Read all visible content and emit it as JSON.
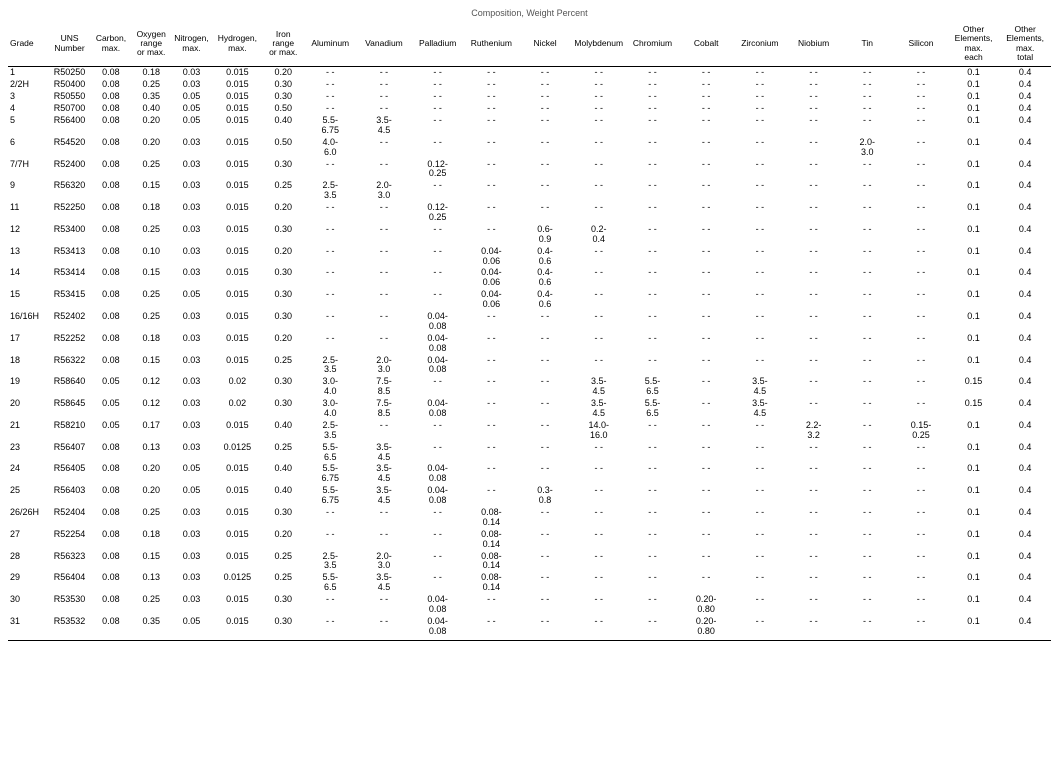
{
  "title": "Composition, Weight Percent",
  "columns": [
    {
      "key": "grade",
      "label": "Grade"
    },
    {
      "key": "uns",
      "label": "UNS\nNumber"
    },
    {
      "key": "carbon",
      "label": "Carbon,\nmax."
    },
    {
      "key": "oxygen",
      "label": "Oxygen\nrange\nor max."
    },
    {
      "key": "nitrogen",
      "label": "Nitrogen,\nmax."
    },
    {
      "key": "hydrogen",
      "label": "Hydrogen,\nmax."
    },
    {
      "key": "iron",
      "label": "Iron\nrange\nor max."
    },
    {
      "key": "al",
      "label": "Aluminum"
    },
    {
      "key": "v",
      "label": "Vanadium"
    },
    {
      "key": "pd",
      "label": "Palladium"
    },
    {
      "key": "ru",
      "label": "Ruthenium"
    },
    {
      "key": "ni",
      "label": "Nickel"
    },
    {
      "key": "mo",
      "label": "Molybdenum"
    },
    {
      "key": "cr",
      "label": "Chromium"
    },
    {
      "key": "co",
      "label": "Cobalt"
    },
    {
      "key": "zr",
      "label": "Zirconium"
    },
    {
      "key": "nb",
      "label": "Niobium"
    },
    {
      "key": "sn",
      "label": "Tin"
    },
    {
      "key": "si",
      "label": "Silicon"
    },
    {
      "key": "oe_each",
      "label": "Other\nElements,\nmax.\neach"
    },
    {
      "key": "oe_total",
      "label": "Other\nElements,\nmax.\ntotal"
    }
  ],
  "rows": [
    {
      "grade": "1",
      "uns": "R50250",
      "carbon": "0.08",
      "oxygen": "0.18",
      "nitrogen": "0.03",
      "hydrogen": "0.015",
      "iron": "0.20",
      "al": "- -",
      "v": "- -",
      "pd": "- -",
      "ru": "- -",
      "ni": "- -",
      "mo": "- -",
      "cr": "- -",
      "co": "- -",
      "zr": "- -",
      "nb": "- -",
      "sn": "- -",
      "si": "- -",
      "oe_each": "0.1",
      "oe_total": "0.4"
    },
    {
      "grade": "2/2H",
      "uns": "R50400",
      "carbon": "0.08",
      "oxygen": "0.25",
      "nitrogen": "0.03",
      "hydrogen": "0.015",
      "iron": "0.30",
      "al": "- -",
      "v": "- -",
      "pd": "- -",
      "ru": "- -",
      "ni": "- -",
      "mo": "- -",
      "cr": "- -",
      "co": "- -",
      "zr": "- -",
      "nb": "- -",
      "sn": "- -",
      "si": "- -",
      "oe_each": "0.1",
      "oe_total": "0.4"
    },
    {
      "grade": "3",
      "uns": "R50550",
      "carbon": "0.08",
      "oxygen": "0.35",
      "nitrogen": "0.05",
      "hydrogen": "0.015",
      "iron": "0.30",
      "al": "- -",
      "v": "- -",
      "pd": "- -",
      "ru": "- -",
      "ni": "- -",
      "mo": "- -",
      "cr": "- -",
      "co": "- -",
      "zr": "- -",
      "nb": "- -",
      "sn": "- -",
      "si": "- -",
      "oe_each": "0.1",
      "oe_total": "0.4"
    },
    {
      "grade": "4",
      "uns": "R50700",
      "carbon": "0.08",
      "oxygen": "0.40",
      "nitrogen": "0.05",
      "hydrogen": "0.015",
      "iron": "0.50",
      "al": "- -",
      "v": "- -",
      "pd": "- -",
      "ru": "- -",
      "ni": "- -",
      "mo": "- -",
      "cr": "- -",
      "co": "- -",
      "zr": "- -",
      "nb": "- -",
      "sn": "- -",
      "si": "- -",
      "oe_each": "0.1",
      "oe_total": "0.4"
    },
    {
      "grade": "5",
      "uns": "R56400",
      "carbon": "0.08",
      "oxygen": "0.20",
      "nitrogen": "0.05",
      "hydrogen": "0.015",
      "iron": "0.40",
      "al": "5.5-\n6.75",
      "v": "3.5-\n4.5",
      "pd": "- -",
      "ru": "- -",
      "ni": "- -",
      "mo": "- -",
      "cr": "- -",
      "co": "- -",
      "zr": "- -",
      "nb": "- -",
      "sn": "- -",
      "si": "- -",
      "oe_each": "0.1",
      "oe_total": "0.4"
    },
    {
      "grade": "6",
      "uns": "R54520",
      "carbon": "0.08",
      "oxygen": "0.20",
      "nitrogen": "0.03",
      "hydrogen": "0.015",
      "iron": "0.50",
      "al": "4.0-\n6.0",
      "v": "- -",
      "pd": "- -",
      "ru": "- -",
      "ni": "- -",
      "mo": "- -",
      "cr": "- -",
      "co": "- -",
      "zr": "- -",
      "nb": "- -",
      "sn": "2.0-\n3.0",
      "si": "- -",
      "oe_each": "0.1",
      "oe_total": "0.4"
    },
    {
      "grade": "7/7H",
      "uns": "R52400",
      "carbon": "0.08",
      "oxygen": "0.25",
      "nitrogen": "0.03",
      "hydrogen": "0.015",
      "iron": "0.30",
      "al": "- -",
      "v": "- -",
      "pd": "0.12-\n0.25",
      "ru": "- -",
      "ni": "- -",
      "mo": "- -",
      "cr": "- -",
      "co": "- -",
      "zr": "- -",
      "nb": "- -",
      "sn": "- -",
      "si": "- -",
      "oe_each": "0.1",
      "oe_total": "0.4"
    },
    {
      "grade": "9",
      "uns": "R56320",
      "carbon": "0.08",
      "oxygen": "0.15",
      "nitrogen": "0.03",
      "hydrogen": "0.015",
      "iron": "0.25",
      "al": "2.5-\n3.5",
      "v": "2.0-\n3.0",
      "pd": "- -",
      "ru": "- -",
      "ni": "- -",
      "mo": "- -",
      "cr": "- -",
      "co": "- -",
      "zr": "- -",
      "nb": "- -",
      "sn": "- -",
      "si": "- -",
      "oe_each": "0.1",
      "oe_total": "0.4"
    },
    {
      "grade": "11",
      "uns": "R52250",
      "carbon": "0.08",
      "oxygen": "0.18",
      "nitrogen": "0.03",
      "hydrogen": "0.015",
      "iron": "0.20",
      "al": "- -",
      "v": "- -",
      "pd": "0.12-\n0.25",
      "ru": "- -",
      "ni": "- -",
      "mo": "- -",
      "cr": "- -",
      "co": "- -",
      "zr": "- -",
      "nb": "- -",
      "sn": "- -",
      "si": "- -",
      "oe_each": "0.1",
      "oe_total": "0.4"
    },
    {
      "grade": "12",
      "uns": "R53400",
      "carbon": "0.08",
      "oxygen": "0.25",
      "nitrogen": "0.03",
      "hydrogen": "0.015",
      "iron": "0.30",
      "al": "- -",
      "v": "- -",
      "pd": "- -",
      "ru": "- -",
      "ni": "0.6-\n0.9",
      "mo": "0.2-\n0.4",
      "cr": "- -",
      "co": "- -",
      "zr": "- -",
      "nb": "- -",
      "sn": "- -",
      "si": "- -",
      "oe_each": "0.1",
      "oe_total": "0.4"
    },
    {
      "grade": "13",
      "uns": "R53413",
      "carbon": "0.08",
      "oxygen": "0.10",
      "nitrogen": "0.03",
      "hydrogen": "0.015",
      "iron": "0.20",
      "al": "- -",
      "v": "- -",
      "pd": "- -",
      "ru": "0.04-\n0.06",
      "ni": "0.4-\n0.6",
      "mo": "- -",
      "cr": "- -",
      "co": "- -",
      "zr": "- -",
      "nb": "- -",
      "sn": "- -",
      "si": "- -",
      "oe_each": "0.1",
      "oe_total": "0.4"
    },
    {
      "grade": "14",
      "uns": "R53414",
      "carbon": "0.08",
      "oxygen": "0.15",
      "nitrogen": "0.03",
      "hydrogen": "0.015",
      "iron": "0.30",
      "al": "- -",
      "v": "- -",
      "pd": "- -",
      "ru": "0.04-\n0.06",
      "ni": "0.4-\n0.6",
      "mo": "- -",
      "cr": "- -",
      "co": "- -",
      "zr": "- -",
      "nb": "- -",
      "sn": "- -",
      "si": "- -",
      "oe_each": "0.1",
      "oe_total": "0.4"
    },
    {
      "grade": "15",
      "uns": "R53415",
      "carbon": "0.08",
      "oxygen": "0.25",
      "nitrogen": "0.05",
      "hydrogen": "0.015",
      "iron": "0.30",
      "al": "- -",
      "v": "- -",
      "pd": "- -",
      "ru": "0.04-\n0.06",
      "ni": "0.4-\n0.6",
      "mo": "- -",
      "cr": "- -",
      "co": "- -",
      "zr": "- -",
      "nb": "- -",
      "sn": "- -",
      "si": "- -",
      "oe_each": "0.1",
      "oe_total": "0.4"
    },
    {
      "grade": "16/16H",
      "uns": "R52402",
      "carbon": "0.08",
      "oxygen": "0.25",
      "nitrogen": "0.03",
      "hydrogen": "0.015",
      "iron": "0.30",
      "al": "- -",
      "v": "- -",
      "pd": "0.04-\n0.08",
      "ru": "- -",
      "ni": "- -",
      "mo": "- -",
      "cr": "- -",
      "co": "- -",
      "zr": "- -",
      "nb": "- -",
      "sn": "- -",
      "si": "- -",
      "oe_each": "0.1",
      "oe_total": "0.4"
    },
    {
      "grade": "17",
      "uns": "R52252",
      "carbon": "0.08",
      "oxygen": "0.18",
      "nitrogen": "0.03",
      "hydrogen": "0.015",
      "iron": "0.20",
      "al": "- -",
      "v": "- -",
      "pd": "0.04-\n0.08",
      "ru": "- -",
      "ni": "- -",
      "mo": "- -",
      "cr": "- -",
      "co": "- -",
      "zr": "- -",
      "nb": "- -",
      "sn": "- -",
      "si": "- -",
      "oe_each": "0.1",
      "oe_total": "0.4"
    },
    {
      "grade": "18",
      "uns": "R56322",
      "carbon": "0.08",
      "oxygen": "0.15",
      "nitrogen": "0.03",
      "hydrogen": "0.015",
      "iron": "0.25",
      "al": "2.5-\n3.5",
      "v": "2.0-\n3.0",
      "pd": "0.04-\n0.08",
      "ru": "- -",
      "ni": "- -",
      "mo": "- -",
      "cr": "- -",
      "co": "- -",
      "zr": "- -",
      "nb": "- -",
      "sn": "- -",
      "si": "- -",
      "oe_each": "0.1",
      "oe_total": "0.4"
    },
    {
      "grade": "19",
      "uns": "R58640",
      "carbon": "0.05",
      "oxygen": "0.12",
      "nitrogen": "0.03",
      "hydrogen": "0.02",
      "iron": "0.30",
      "al": "3.0-\n4.0",
      "v": "7.5-\n8.5",
      "pd": "- -",
      "ru": "- -",
      "ni": "- -",
      "mo": "3.5-\n4.5",
      "cr": "5.5-\n6.5",
      "co": "- -",
      "zr": "3.5-\n4.5",
      "nb": "- -",
      "sn": "- -",
      "si": "- -",
      "oe_each": "0.15",
      "oe_total": "0.4"
    },
    {
      "grade": "20",
      "uns": "R58645",
      "carbon": "0.05",
      "oxygen": "0.12",
      "nitrogen": "0.03",
      "hydrogen": "0.02",
      "iron": "0.30",
      "al": "3.0-\n4.0",
      "v": "7.5-\n8.5",
      "pd": "0.04-\n0.08",
      "ru": "- -",
      "ni": "- -",
      "mo": "3.5-\n4.5",
      "cr": "5.5-\n6.5",
      "co": "- -",
      "zr": "3.5-\n4.5",
      "nb": "- -",
      "sn": "- -",
      "si": "- -",
      "oe_each": "0.15",
      "oe_total": "0.4"
    },
    {
      "grade": "21",
      "uns": "R58210",
      "carbon": "0.05",
      "oxygen": "0.17",
      "nitrogen": "0.03",
      "hydrogen": "0.015",
      "iron": "0.40",
      "al": "2.5-\n3.5",
      "v": "- -",
      "pd": "- -",
      "ru": "- -",
      "ni": "- -",
      "mo": "14.0-\n16.0",
      "cr": "- -",
      "co": "- -",
      "zr": "- -",
      "nb": "2.2-\n3.2",
      "sn": "- -",
      "si": "0.15-\n0.25",
      "oe_each": "0.1",
      "oe_total": "0.4"
    },
    {
      "grade": "23",
      "uns": "R56407",
      "carbon": "0.08",
      "oxygen": "0.13",
      "nitrogen": "0.03",
      "hydrogen": "0.0125",
      "iron": "0.25",
      "al": "5.5-\n6.5",
      "v": "3.5-\n4.5",
      "pd": "- -",
      "ru": "- -",
      "ni": "- -",
      "mo": "- -",
      "cr": "- -",
      "co": "- -",
      "zr": "- -",
      "nb": "- -",
      "sn": "- -",
      "si": "- -",
      "oe_each": "0.1",
      "oe_total": "0.4"
    },
    {
      "grade": "24",
      "uns": "R56405",
      "carbon": "0.08",
      "oxygen": "0.20",
      "nitrogen": "0.05",
      "hydrogen": "0.015",
      "iron": "0.40",
      "al": "5.5-\n6.75",
      "v": "3.5-\n4.5",
      "pd": "0.04-\n0.08",
      "ru": "- -",
      "ni": "- -",
      "mo": "- -",
      "cr": "- -",
      "co": "- -",
      "zr": "- -",
      "nb": "- -",
      "sn": "- -",
      "si": "- -",
      "oe_each": "0.1",
      "oe_total": "0.4"
    },
    {
      "grade": "25",
      "uns": "R56403",
      "carbon": "0.08",
      "oxygen": "0.20",
      "nitrogen": "0.05",
      "hydrogen": "0.015",
      "iron": "0.40",
      "al": "5.5-\n6.75",
      "v": "3.5-\n4.5",
      "pd": "0.04-\n0.08",
      "ru": "- -",
      "ni": "0.3-\n0.8",
      "mo": "- -",
      "cr": "- -",
      "co": "- -",
      "zr": "- -",
      "nb": "- -",
      "sn": "- -",
      "si": "- -",
      "oe_each": "0.1",
      "oe_total": "0.4"
    },
    {
      "grade": "26/26H",
      "uns": "R52404",
      "carbon": "0.08",
      "oxygen": "0.25",
      "nitrogen": "0.03",
      "hydrogen": "0.015",
      "iron": "0.30",
      "al": "- -",
      "v": "- -",
      "pd": "- -",
      "ru": "0.08-\n0.14",
      "ni": "- -",
      "mo": "- -",
      "cr": "- -",
      "co": "- -",
      "zr": "- -",
      "nb": "- -",
      "sn": "- -",
      "si": "- -",
      "oe_each": "0.1",
      "oe_total": "0.4"
    },
    {
      "grade": "27",
      "uns": "R52254",
      "carbon": "0.08",
      "oxygen": "0.18",
      "nitrogen": "0.03",
      "hydrogen": "0.015",
      "iron": "0.20",
      "al": "- -",
      "v": "- -",
      "pd": "- -",
      "ru": "0.08-\n0.14",
      "ni": "- -",
      "mo": "- -",
      "cr": "- -",
      "co": "- -",
      "zr": "- -",
      "nb": "- -",
      "sn": "- -",
      "si": "- -",
      "oe_each": "0.1",
      "oe_total": "0.4"
    },
    {
      "grade": "28",
      "uns": "R56323",
      "carbon": "0.08",
      "oxygen": "0.15",
      "nitrogen": "0.03",
      "hydrogen": "0.015",
      "iron": "0.25",
      "al": "2.5-\n3.5",
      "v": "2.0-\n3.0",
      "pd": "- -",
      "ru": "0.08-\n0.14",
      "ni": "- -",
      "mo": "- -",
      "cr": "- -",
      "co": "- -",
      "zr": "- -",
      "nb": "- -",
      "sn": "- -",
      "si": "- -",
      "oe_each": "0.1",
      "oe_total": "0.4"
    },
    {
      "grade": "29",
      "uns": "R56404",
      "carbon": "0.08",
      "oxygen": "0.13",
      "nitrogen": "0.03",
      "hydrogen": "0.0125",
      "iron": "0.25",
      "al": "5.5-\n6.5",
      "v": "3.5-\n4.5",
      "pd": "- -",
      "ru": "0.08-\n0.14",
      "ni": "- -",
      "mo": "- -",
      "cr": "- -",
      "co": "- -",
      "zr": "- -",
      "nb": "- -",
      "sn": "- -",
      "si": "- -",
      "oe_each": "0.1",
      "oe_total": "0.4"
    },
    {
      "grade": "30",
      "uns": "R53530",
      "carbon": "0.08",
      "oxygen": "0.25",
      "nitrogen": "0.03",
      "hydrogen": "0.015",
      "iron": "0.30",
      "al": "- -",
      "v": "- -",
      "pd": "0.04-\n0.08",
      "ru": "- -",
      "ni": "- -",
      "mo": "- -",
      "cr": "- -",
      "co": "0.20-\n0.80",
      "zr": "- -",
      "nb": "- -",
      "sn": "- -",
      "si": "- -",
      "oe_each": "0.1",
      "oe_total": "0.4"
    },
    {
      "grade": "31",
      "uns": "R53532",
      "carbon": "0.08",
      "oxygen": "0.35",
      "nitrogen": "0.05",
      "hydrogen": "0.015",
      "iron": "0.30",
      "al": "- -",
      "v": "- -",
      "pd": "0.04-\n0.08",
      "ru": "- -",
      "ni": "- -",
      "mo": "- -",
      "cr": "- -",
      "co": "0.20-\n0.80",
      "zr": "- -",
      "nb": "- -",
      "sn": "- -",
      "si": "- -",
      "oe_each": "0.1",
      "oe_total": "0.4"
    }
  ]
}
